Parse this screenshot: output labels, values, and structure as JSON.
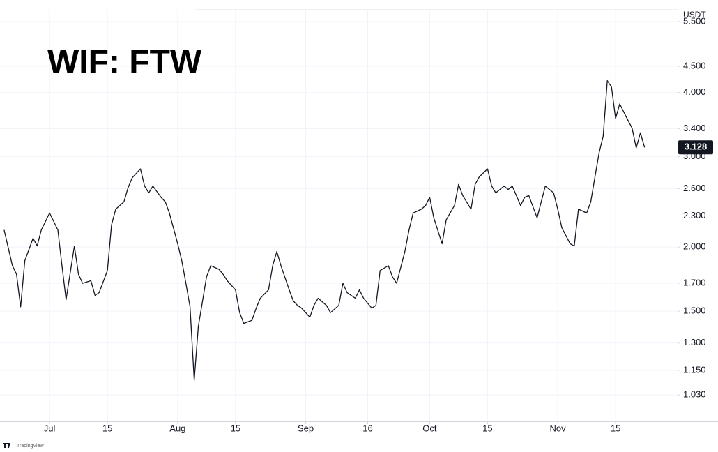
{
  "chart_data": {
    "type": "line",
    "title": "WIF: FTW",
    "y_unit": "USDT",
    "logo": "TradingView",
    "log_scale": true,
    "grid": true,
    "series": [
      {
        "color": "#131722",
        "x": [
          "06-20",
          "06-22",
          "06-23",
          "06-24",
          "06-25",
          "06-27",
          "06-28",
          "06-29",
          "07-01",
          "07-03",
          "07-04",
          "07-05",
          "07-07",
          "07-08",
          "07-09",
          "07-11",
          "07-12",
          "07-13",
          "07-15",
          "07-16",
          "07-17",
          "07-19",
          "07-20",
          "07-21",
          "07-23",
          "07-24",
          "07-25",
          "07-26",
          "07-28",
          "07-29",
          "07-30",
          "08-01",
          "08-02",
          "08-03",
          "08-04",
          "08-05",
          "08-06",
          "08-08",
          "08-09",
          "08-11",
          "08-12",
          "08-13",
          "08-15",
          "08-16",
          "08-17",
          "08-19",
          "08-20",
          "08-21",
          "08-23",
          "08-24",
          "08-25",
          "08-26",
          "08-28",
          "08-29",
          "08-30",
          "08-31",
          "09-02",
          "09-03",
          "09-04",
          "09-06",
          "09-07",
          "09-09",
          "09-10",
          "09-11",
          "09-13",
          "09-14",
          "09-15",
          "09-17",
          "09-18",
          "09-19",
          "09-21",
          "09-22",
          "09-23",
          "09-25",
          "09-26",
          "09-27",
          "09-29",
          "09-30",
          "10-01",
          "10-02",
          "10-04",
          "10-05",
          "10-07",
          "10-08",
          "10-09",
          "10-11",
          "10-12",
          "10-13",
          "10-15",
          "10-16",
          "10-17",
          "10-19",
          "10-20",
          "10-21",
          "10-23",
          "10-24",
          "10-25",
          "10-27",
          "10-28",
          "10-29",
          "10-31",
          "11-01",
          "11-02",
          "11-04",
          "11-05",
          "11-06",
          "11-08",
          "11-09",
          "11-10",
          "11-11",
          "11-12",
          "11-13",
          "11-14",
          "11-15",
          "11-16",
          "11-18",
          "11-19",
          "11-20",
          "11-21",
          "11-22"
        ],
        "values": [
          2.16,
          1.84,
          1.77,
          1.53,
          1.88,
          2.08,
          2.01,
          2.16,
          2.33,
          2.16,
          1.84,
          1.58,
          2.01,
          1.77,
          1.7,
          1.72,
          1.61,
          1.63,
          1.8,
          2.21,
          2.37,
          2.45,
          2.61,
          2.73,
          2.84,
          2.63,
          2.55,
          2.63,
          2.5,
          2.45,
          2.33,
          2.03,
          1.88,
          1.7,
          1.53,
          1.1,
          1.4,
          1.75,
          1.84,
          1.81,
          1.77,
          1.72,
          1.65,
          1.49,
          1.42,
          1.44,
          1.52,
          1.59,
          1.65,
          1.84,
          1.96,
          1.84,
          1.65,
          1.57,
          1.54,
          1.52,
          1.46,
          1.54,
          1.59,
          1.54,
          1.49,
          1.54,
          1.7,
          1.63,
          1.59,
          1.65,
          1.59,
          1.52,
          1.54,
          1.8,
          1.84,
          1.75,
          1.7,
          1.96,
          2.16,
          2.33,
          2.37,
          2.41,
          2.5,
          2.28,
          2.03,
          2.26,
          2.41,
          2.65,
          2.52,
          2.37,
          2.65,
          2.74,
          2.84,
          2.63,
          2.55,
          2.63,
          2.59,
          2.63,
          2.41,
          2.5,
          2.52,
          2.28,
          2.45,
          2.63,
          2.55,
          2.37,
          2.18,
          2.03,
          2.01,
          2.37,
          2.33,
          2.45,
          2.74,
          3.05,
          3.29,
          4.22,
          4.1,
          3.56,
          3.8,
          3.53,
          3.41,
          3.12,
          3.34,
          3.128
        ]
      }
    ],
    "xlim": [
      "06-19",
      "11-30"
    ],
    "xticks": [
      {
        "value": "07-01",
        "label": "Jul"
      },
      {
        "value": "07-15",
        "label": "15"
      },
      {
        "value": "08-01",
        "label": "Aug"
      },
      {
        "value": "08-15",
        "label": "15"
      },
      {
        "value": "09-01",
        "label": "Sep"
      },
      {
        "value": "09-16",
        "label": "16"
      },
      {
        "value": "10-01",
        "label": "Oct"
      },
      {
        "value": "10-15",
        "label": "15"
      },
      {
        "value": "11-01",
        "label": "Nov"
      },
      {
        "value": "11-15",
        "label": "15"
      }
    ],
    "ylim": [
      0.915,
      5.8
    ],
    "yticks": [
      {
        "value": 1.03,
        "label": "1.030"
      },
      {
        "value": 1.15,
        "label": "1.150"
      },
      {
        "value": 1.3,
        "label": "1.300"
      },
      {
        "value": 1.5,
        "label": "1.500"
      },
      {
        "value": 1.7,
        "label": "1.700"
      },
      {
        "value": 2,
        "label": "2.000"
      },
      {
        "value": 2.3,
        "label": "2.300"
      },
      {
        "value": 2.6,
        "label": "2.600"
      },
      {
        "value": 3,
        "label": "3.000"
      },
      {
        "value": 3.4,
        "label": "3.400"
      },
      {
        "value": 4,
        "label": "4.000"
      },
      {
        "value": 4.5,
        "label": "4.500"
      },
      {
        "value": 5.5,
        "label": "5.500"
      }
    ]
  }
}
